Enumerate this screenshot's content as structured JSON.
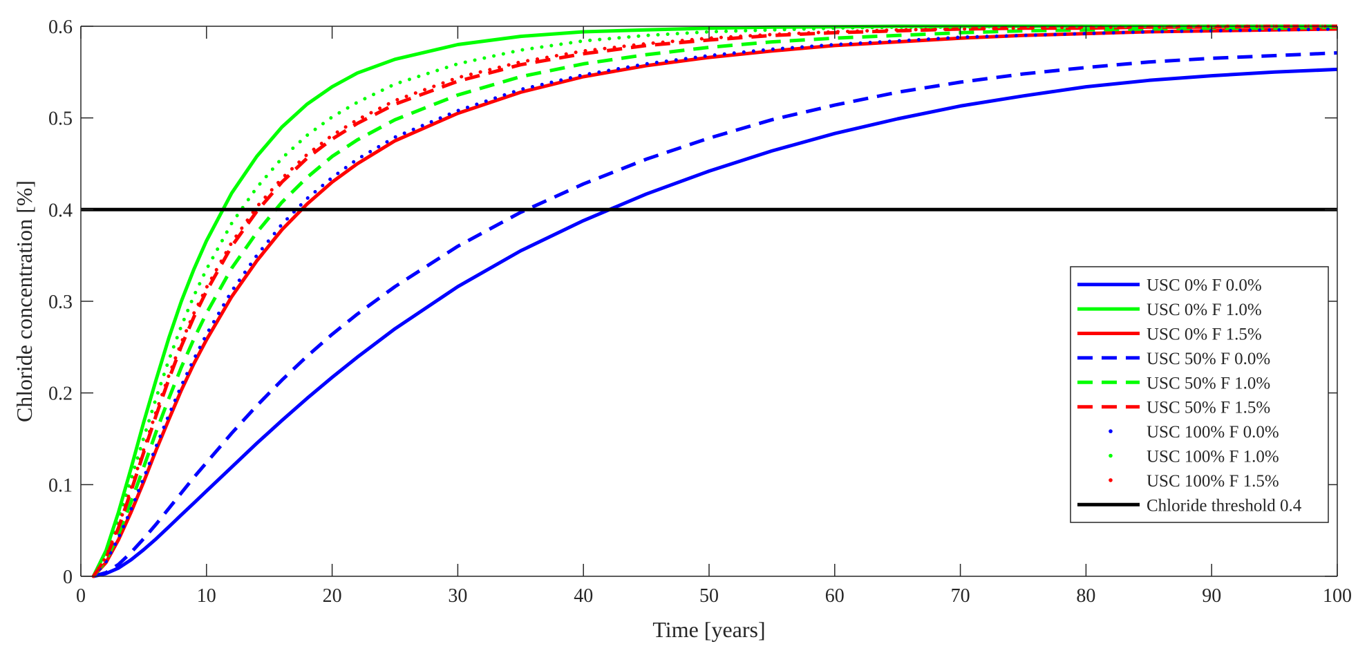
{
  "chart_data": {
    "type": "line",
    "title": "",
    "xlabel": "Time [years]",
    "ylabel": "Chloride concentration [%]",
    "xlim": [
      0,
      100
    ],
    "ylim": [
      0,
      0.6
    ],
    "xticks": [
      0,
      10,
      20,
      30,
      40,
      50,
      60,
      70,
      80,
      90,
      100
    ],
    "yticks": [
      0,
      0.1,
      0.2,
      0.3,
      0.4,
      0.5,
      0.6
    ],
    "xtick_labels": [
      "0",
      "10",
      "20",
      "30",
      "40",
      "50",
      "60",
      "70",
      "80",
      "90",
      "100"
    ],
    "ytick_labels": [
      "0",
      "0.1",
      "0.2",
      "0.3",
      "0.4",
      "0.5",
      "0.6"
    ],
    "grid": false,
    "legend_position": "right",
    "x": [
      1,
      2,
      3,
      4,
      5,
      6,
      7,
      8,
      9,
      10,
      12,
      14,
      16,
      18,
      20,
      22,
      25,
      30,
      35,
      40,
      45,
      50,
      55,
      60,
      65,
      70,
      75,
      80,
      85,
      90,
      95,
      100
    ],
    "series": [
      {
        "name": "USC 0% F 0.0%",
        "color": "#0000ff",
        "style": "solid",
        "values": [
          0,
          0.003,
          0.009,
          0.018,
          0.029,
          0.041,
          0.054,
          0.067,
          0.08,
          0.093,
          0.119,
          0.145,
          0.17,
          0.194,
          0.217,
          0.239,
          0.27,
          0.316,
          0.355,
          0.388,
          0.417,
          0.442,
          0.464,
          0.483,
          0.499,
          0.513,
          0.524,
          0.534,
          0.541,
          0.546,
          0.55,
          0.553
        ]
      },
      {
        "name": "USC 0% F 1.0%",
        "color": "#00ff00",
        "style": "solid",
        "values": [
          0,
          0.028,
          0.07,
          0.118,
          0.168,
          0.215,
          0.26,
          0.3,
          0.335,
          0.366,
          0.418,
          0.458,
          0.49,
          0.515,
          0.534,
          0.549,
          0.564,
          0.58,
          0.589,
          0.594,
          0.596,
          0.598,
          0.599,
          0.5995,
          0.6,
          0.6,
          0.6,
          0.6,
          0.6,
          0.6,
          0.6,
          0.6
        ]
      },
      {
        "name": "USC 0% F 1.5%",
        "color": "#ff0000",
        "style": "solid",
        "values": [
          0,
          0.015,
          0.04,
          0.07,
          0.103,
          0.138,
          0.171,
          0.203,
          0.232,
          0.258,
          0.305,
          0.344,
          0.378,
          0.406,
          0.43,
          0.45,
          0.475,
          0.505,
          0.528,
          0.545,
          0.557,
          0.566,
          0.573,
          0.579,
          0.583,
          0.587,
          0.59,
          0.592,
          0.594,
          0.595,
          0.596,
          0.597
        ]
      },
      {
        "name": "USC 50% F 0.0%",
        "color": "#0000ff",
        "style": "dashed",
        "values": [
          0,
          0.004,
          0.013,
          0.026,
          0.041,
          0.057,
          0.074,
          0.091,
          0.108,
          0.124,
          0.156,
          0.186,
          0.214,
          0.24,
          0.264,
          0.286,
          0.316,
          0.36,
          0.397,
          0.428,
          0.455,
          0.478,
          0.498,
          0.514,
          0.528,
          0.539,
          0.548,
          0.555,
          0.561,
          0.565,
          0.568,
          0.571
        ]
      },
      {
        "name": "USC 50% F 1.0%",
        "color": "#00ff00",
        "style": "dashed",
        "values": [
          0,
          0.017,
          0.046,
          0.081,
          0.119,
          0.158,
          0.194,
          0.228,
          0.259,
          0.287,
          0.336,
          0.375,
          0.408,
          0.435,
          0.458,
          0.476,
          0.498,
          0.525,
          0.545,
          0.559,
          0.569,
          0.577,
          0.583,
          0.587,
          0.59,
          0.593,
          0.595,
          0.596,
          0.597,
          0.598,
          0.598,
          0.599
        ]
      },
      {
        "name": "USC 50% F 1.5%",
        "color": "#ff0000",
        "style": "dashed",
        "values": [
          0,
          0.02,
          0.053,
          0.093,
          0.135,
          0.176,
          0.215,
          0.251,
          0.283,
          0.311,
          0.36,
          0.398,
          0.43,
          0.456,
          0.477,
          0.494,
          0.515,
          0.54,
          0.558,
          0.57,
          0.579,
          0.585,
          0.59,
          0.593,
          0.595,
          0.597,
          0.598,
          0.598,
          0.599,
          0.599,
          0.6,
          0.6
        ]
      },
      {
        "name": "USC 100% F 0.0%",
        "color": "#0000ff",
        "style": "dotted",
        "values": [
          0,
          0.016,
          0.042,
          0.073,
          0.107,
          0.142,
          0.176,
          0.208,
          0.237,
          0.264,
          0.311,
          0.35,
          0.384,
          0.412,
          0.435,
          0.455,
          0.479,
          0.508,
          0.531,
          0.547,
          0.559,
          0.568,
          0.575,
          0.58,
          0.584,
          0.588,
          0.59,
          0.592,
          0.594,
          0.595,
          0.596,
          0.597
        ]
      },
      {
        "name": "USC 100% F 1.0%",
        "color": "#00ff00",
        "style": "dotted",
        "values": [
          0,
          0.024,
          0.062,
          0.106,
          0.151,
          0.195,
          0.236,
          0.273,
          0.306,
          0.335,
          0.385,
          0.424,
          0.456,
          0.481,
          0.501,
          0.517,
          0.537,
          0.559,
          0.574,
          0.584,
          0.59,
          0.594,
          0.596,
          0.598,
          0.599,
          0.599,
          0.6,
          0.6,
          0.6,
          0.6,
          0.6,
          0.6
        ]
      },
      {
        "name": "USC 100% F 1.5%",
        "color": "#ff0000",
        "style": "dotted",
        "values": [
          0,
          0.021,
          0.055,
          0.096,
          0.138,
          0.18,
          0.219,
          0.255,
          0.287,
          0.315,
          0.364,
          0.403,
          0.434,
          0.46,
          0.481,
          0.498,
          0.519,
          0.544,
          0.561,
          0.573,
          0.581,
          0.587,
          0.591,
          0.594,
          0.596,
          0.597,
          0.598,
          0.599,
          0.599,
          0.6,
          0.6,
          0.6
        ]
      },
      {
        "name": "Chloride threshold 0.4",
        "color": "#000000",
        "style": "solid",
        "constant": 0.4,
        "x": [
          0,
          100
        ],
        "values": [
          0.4,
          0.4
        ]
      }
    ]
  }
}
